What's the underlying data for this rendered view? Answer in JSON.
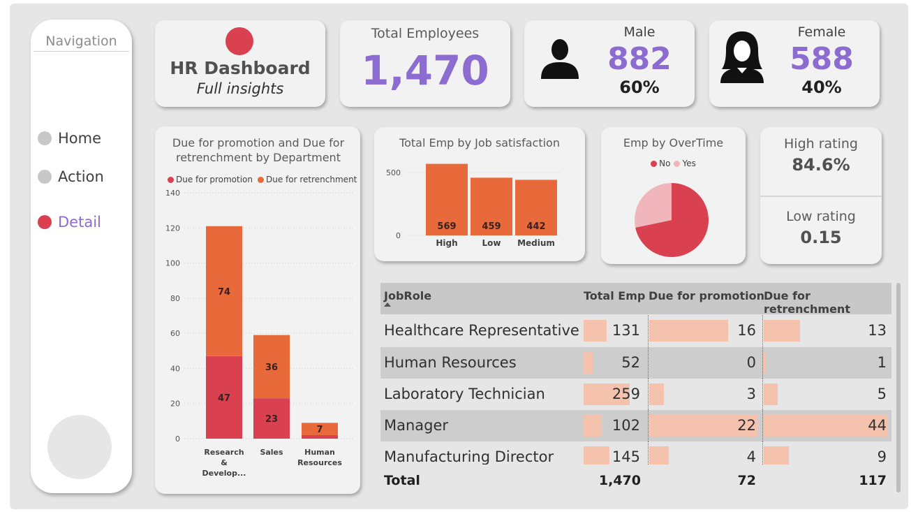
{
  "nav": {
    "title": "Navigation",
    "items": [
      {
        "label": "Home",
        "active": false
      },
      {
        "label": "Action",
        "active": false
      },
      {
        "label": "Detail",
        "active": true
      }
    ]
  },
  "header": {
    "title": "HR Dashboard",
    "subtitle": "Full insights",
    "logo_color": "#d94150"
  },
  "kpis": {
    "total": {
      "label": "Total Employees",
      "value": "1,470"
    },
    "male": {
      "label": "Male",
      "value": "882",
      "pct": "60%"
    },
    "female": {
      "label": "Female",
      "value": "588",
      "pct": "40%"
    },
    "high_rating": {
      "label": "High rating",
      "value": "84.6%"
    },
    "low_rating": {
      "label": "Low rating",
      "value": "0.15"
    }
  },
  "colors": {
    "accent": "#8c6cd0",
    "red": "#d94150",
    "orange": "#e8693a",
    "pink": "#f0b6bb",
    "barlight": "#f4c2ad"
  },
  "chart_data": [
    {
      "type": "bar",
      "stacked": true,
      "title": "Due for promotion and Due for retrenchment by Department",
      "legend": "top",
      "categories": [
        "Research & Develop...",
        "Sales",
        "Human Resources"
      ],
      "series": [
        {
          "name": "Due for promotion",
          "values": [
            47,
            23,
            2
          ],
          "color": "#d94150"
        },
        {
          "name": "Due for retrenchment",
          "values": [
            74,
            36,
            7
          ],
          "color": "#e8693a"
        }
      ],
      "data_labels": {
        "promotion": [
          "47",
          "23",
          ""
        ],
        "retrenchment": [
          "74",
          "36",
          "7"
        ]
      },
      "yticks": [
        0,
        20,
        40,
        60,
        80,
        100,
        120,
        140
      ],
      "ylim": [
        0,
        140
      ],
      "grid": true
    },
    {
      "type": "bar",
      "title": "Total Emp by Job satisfaction",
      "categories": [
        "High",
        "Low",
        "Medium"
      ],
      "values": [
        569,
        459,
        442
      ],
      "yticks": [
        0,
        500
      ],
      "ylim": [
        0,
        600
      ],
      "grid": true
    },
    {
      "type": "pie",
      "title": "Emp by OverTime",
      "legend": "top",
      "labels": [
        "No",
        "Yes"
      ],
      "values": [
        71.7,
        28.3
      ],
      "colors": [
        "#d94150",
        "#f0b6bb"
      ]
    }
  ],
  "table": {
    "columns": [
      "JobRole",
      "Total Emp",
      "Due for promotion",
      "Due for retrenchment"
    ],
    "rows": [
      {
        "role": "Healthcare Representative",
        "total": "131",
        "promo": "16",
        "retr": "13",
        "total_n": 131,
        "promo_n": 16,
        "retr_n": 13
      },
      {
        "role": "Human Resources",
        "total": "52",
        "promo": "0",
        "retr": "1",
        "total_n": 52,
        "promo_n": 0,
        "retr_n": 1
      },
      {
        "role": "Laboratory Technician",
        "total": "259",
        "promo": "3",
        "retr": "5",
        "total_n": 259,
        "promo_n": 3,
        "retr_n": 5
      },
      {
        "role": "Manager",
        "total": "102",
        "promo": "22",
        "retr": "44",
        "total_n": 102,
        "promo_n": 22,
        "retr_n": 44
      },
      {
        "role": "Manufacturing Director",
        "total": "145",
        "promo": "4",
        "retr": "9",
        "total_n": 145,
        "promo_n": 4,
        "retr_n": 9
      }
    ],
    "total_label": "Total",
    "totals": {
      "total": "1,470",
      "promo": "72",
      "retr": "117"
    }
  }
}
